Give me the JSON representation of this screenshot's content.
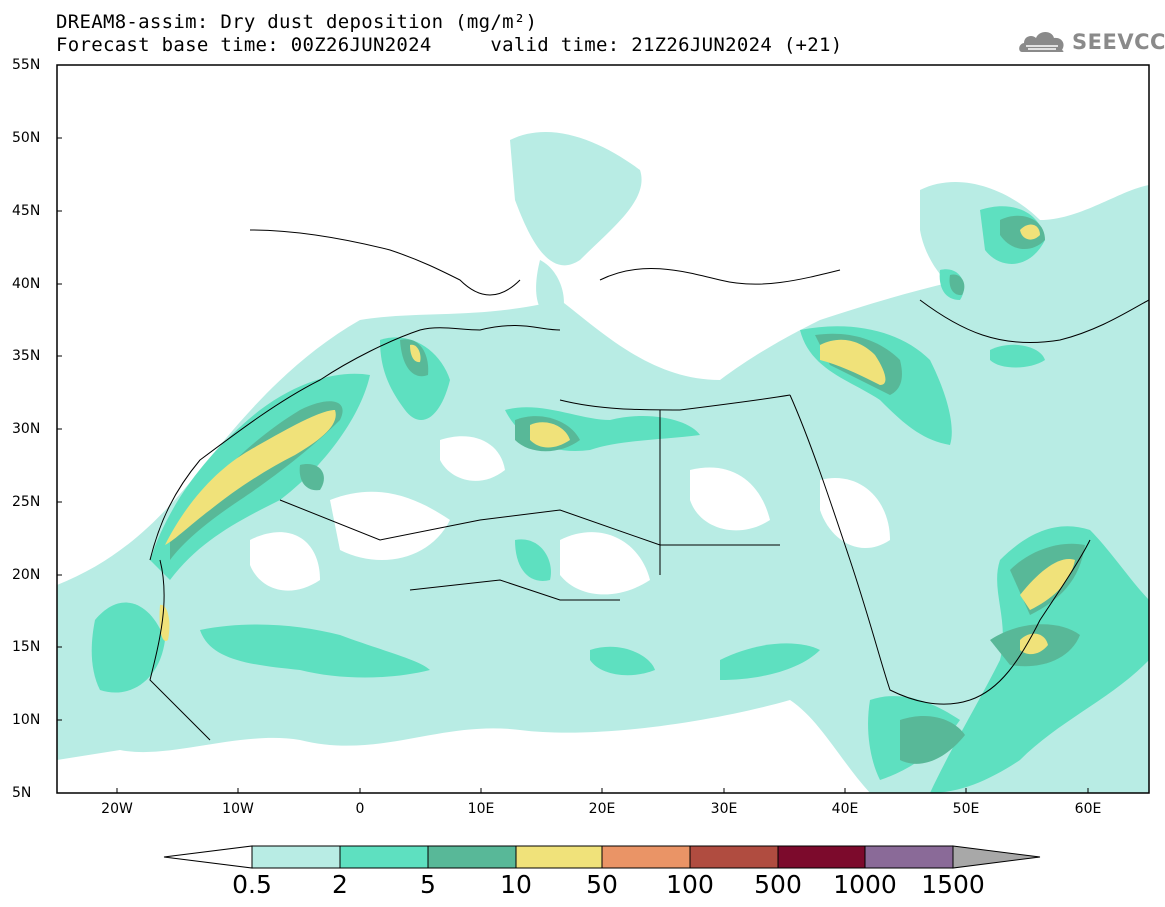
{
  "header": {
    "title_line1": "DREAM8-assim: Dry dust deposition (mg/m²)",
    "title_line2": "Forecast base time: 00Z26JUN2024     valid time: 21Z26JUN2024 (+21)",
    "logo_text": "SEEVCCC"
  },
  "map": {
    "lat_labels": [
      "55N",
      "50N",
      "45N",
      "40N",
      "35N",
      "30N",
      "25N",
      "20N",
      "15N",
      "10N",
      "5N"
    ],
    "lon_labels": [
      "20W",
      "10W",
      "0",
      "10E",
      "20E",
      "30E",
      "40E",
      "50E",
      "60E"
    ],
    "lat_range": [
      5,
      55
    ],
    "lon_range": [
      -25,
      65
    ]
  },
  "colorbar": {
    "labels": [
      "0.5",
      "2",
      "5",
      "10",
      "50",
      "100",
      "500",
      "1000",
      "1500"
    ],
    "colors": [
      "#b8ece4",
      "#5ee0c0",
      "#58b898",
      "#f0e27a",
      "#ea9466",
      "#b04c40",
      "#7c0a2c",
      "#8a6a98",
      "#a8a8a8"
    ]
  }
}
